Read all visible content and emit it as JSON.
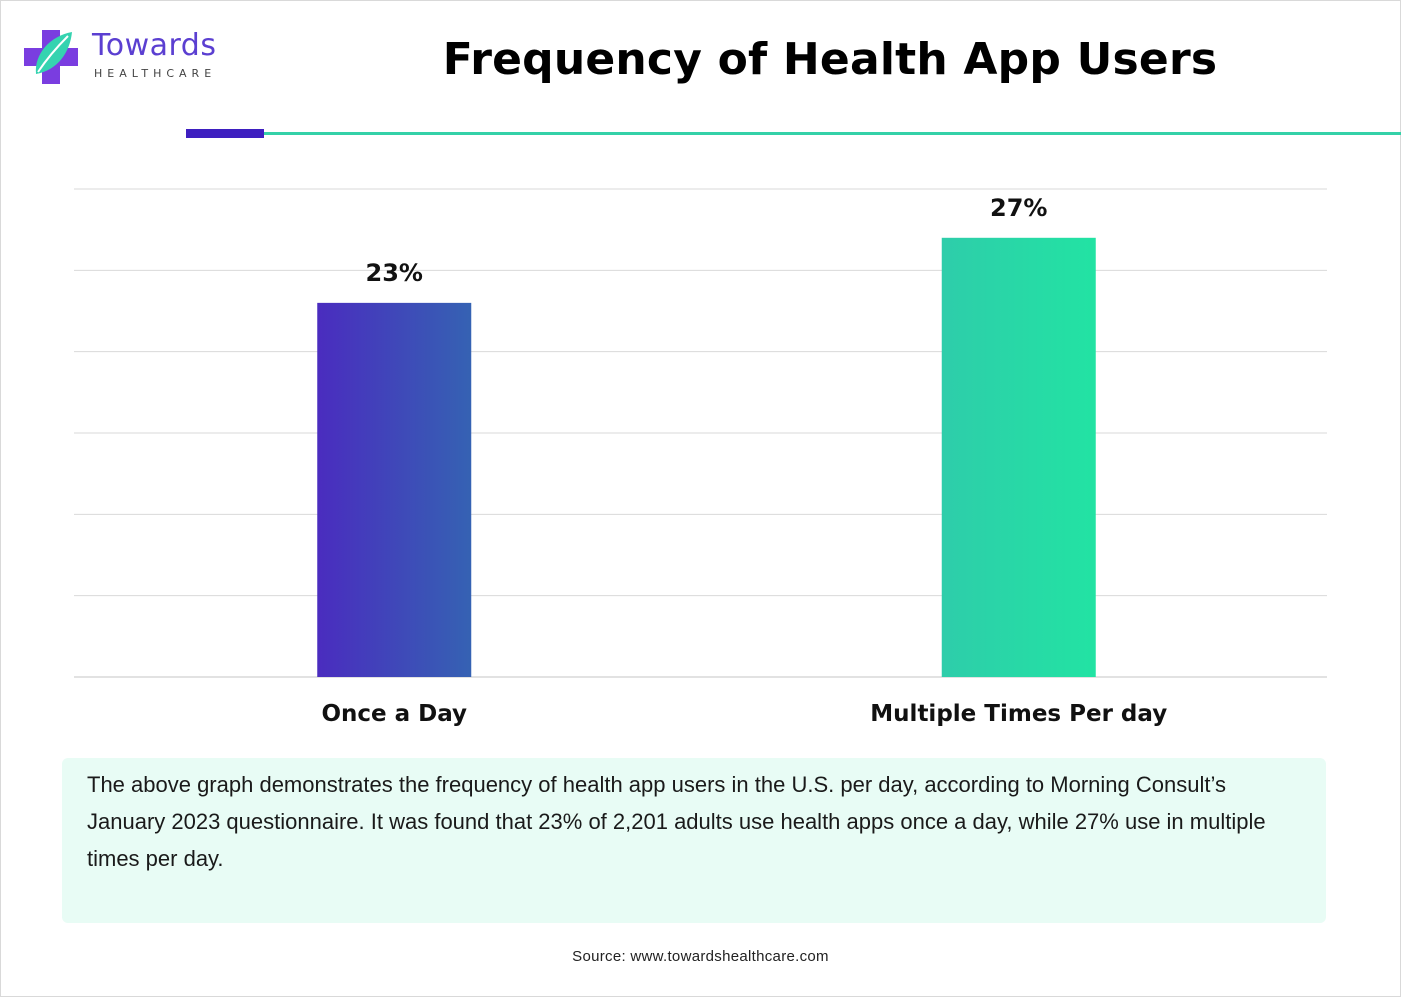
{
  "brand": {
    "name": "Towards",
    "sub": "HEALTHCARE"
  },
  "colors": {
    "accent_purple": "#3e1fc0",
    "accent_teal": "#34d1a8",
    "grid": "#d9d9d9",
    "desc_bg": "#e8fcf5"
  },
  "chart_data": {
    "type": "bar",
    "title": "Frequency of Health App Users",
    "categories": [
      "Once a Day",
      "Multiple Times Per day"
    ],
    "values": [
      23,
      27
    ],
    "data_labels": [
      "23%",
      "27%"
    ],
    "xlabel": "",
    "ylabel": "",
    "ylim": [
      0,
      30
    ],
    "grid": true,
    "bar_colors": [
      [
        "#4a2cbf",
        "#3562b3"
      ],
      [
        "#2ecdaa",
        "#22e3a3"
      ]
    ]
  },
  "description": "The above graph demonstrates the frequency of health app users in the U.S. per day, according to Morning Consult’s January 2023 questionnaire. It was found that 23% of 2,201 adults use health apps once a day, while 27% use in multiple times per day.",
  "source": "Source: www.towardshealthcare.com"
}
